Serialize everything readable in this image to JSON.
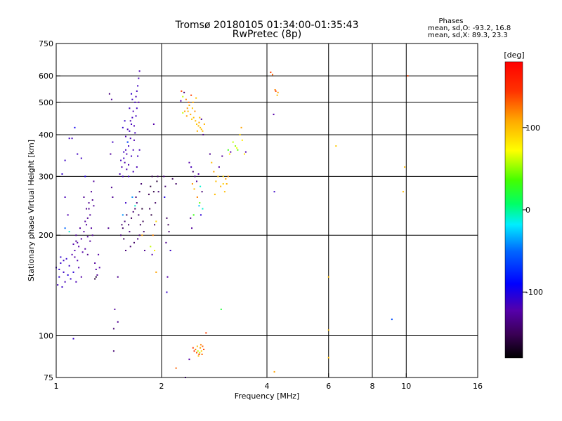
{
  "chart_data": {
    "type": "scatter",
    "title": "Tromsø 20180105 01:34:00-01:35:43",
    "subtitle": "RwPretec (8p)",
    "stats": {
      "heading": "Phases",
      "line1": "mean, sd,O: -93.2, 16.8",
      "line2": "mean, sd,X:  89.3, 23.3"
    },
    "xlabel": "Frequency [MHz]",
    "ylabel": "Stationary phase Virtual Height [km]",
    "x_scale": "log",
    "y_scale": "log",
    "xlim": [
      1,
      16
    ],
    "ylim": [
      75,
      750
    ],
    "x_ticks": [
      1,
      2,
      4,
      6,
      8,
      10,
      16
    ],
    "x_tick_labels": [
      "1",
      "2",
      "4",
      "6",
      "8",
      "10",
      "16"
    ],
    "x_grid": [
      2,
      4,
      6,
      8,
      10
    ],
    "y_ticks": [
      75,
      100,
      200,
      300,
      400,
      500,
      600,
      750
    ],
    "y_tick_labels": [
      "75",
      "100",
      "200",
      "300",
      "400",
      "500",
      "600",
      "750"
    ],
    "y_grid": [
      100,
      200,
      300,
      400,
      500,
      600
    ],
    "grid": true,
    "colorbar": {
      "label": "[deg]",
      "min": -180,
      "max": 180,
      "ticks": [
        100,
        0,
        -100
      ],
      "tick_labels": [
        "100",
        "0",
        "-100"
      ]
    },
    "points": [
      [
        1.0,
        160,
        -110
      ],
      [
        1.02,
        150,
        -105
      ],
      [
        1.03,
        165,
        -108
      ],
      [
        1.05,
        155,
        -112
      ],
      [
        1.06,
        145,
        -115
      ],
      [
        1.04,
        140,
        -110
      ],
      [
        1.07,
        170,
        -108
      ],
      [
        1.08,
        152,
        -103
      ],
      [
        1.02,
        158,
        -106
      ],
      [
        1.09,
        162,
        -110
      ],
      [
        1.1,
        148,
        -109
      ],
      [
        1.05,
        168,
        -111
      ],
      [
        1.01,
        142,
        -113
      ],
      [
        1.12,
        155,
        -104
      ],
      [
        1.03,
        172,
        -107
      ],
      [
        1.11,
        175,
        -120
      ],
      [
        1.13,
        180,
        -118
      ],
      [
        1.15,
        190,
        -122
      ],
      [
        1.14,
        200,
        -125
      ],
      [
        1.16,
        185,
        -120
      ],
      [
        1.18,
        195,
        -123
      ],
      [
        1.17,
        210,
        -125
      ],
      [
        1.19,
        178,
        -121
      ],
      [
        1.12,
        188,
        -119
      ],
      [
        1.2,
        205,
        -124
      ],
      [
        1.15,
        168,
        -117
      ],
      [
        1.13,
        172,
        -120
      ],
      [
        1.16,
        160,
        -118
      ],
      [
        1.18,
        150,
        -121
      ],
      [
        1.14,
        145,
        -116
      ],
      [
        1.21,
        220,
        -125
      ],
      [
        1.22,
        240,
        -130
      ],
      [
        1.2,
        260,
        -128
      ],
      [
        1.23,
        225,
        -127
      ],
      [
        1.24,
        250,
        -129
      ],
      [
        1.25,
        230,
        -126
      ],
      [
        1.26,
        270,
        -128
      ],
      [
        1.27,
        255,
        -130
      ],
      [
        1.22,
        215,
        -124
      ],
      [
        1.28,
        245,
        -127
      ],
      [
        1.23,
        198,
        -123
      ],
      [
        1.25,
        192,
        -125
      ],
      [
        1.21,
        182,
        -121
      ],
      [
        1.26,
        210,
        -124
      ],
      [
        1.27,
        200,
        -126
      ],
      [
        1.29,
        165,
        -125
      ],
      [
        1.3,
        158,
        -122
      ],
      [
        1.31,
        152,
        -128
      ],
      [
        1.29,
        148,
        -160
      ],
      [
        1.3,
        150,
        -165
      ],
      [
        1.33,
        160,
        -120
      ],
      [
        1.32,
        175,
        -122
      ],
      [
        1.12,
        98,
        -110
      ],
      [
        1.06,
        260,
        -115
      ],
      [
        1.08,
        230,
        -118
      ],
      [
        1.04,
        305,
        -108
      ],
      [
        1.06,
        335,
        -110
      ],
      [
        1.09,
        390,
        -112
      ],
      [
        1.13,
        420,
        -95
      ],
      [
        1.15,
        350,
        -112
      ],
      [
        1.11,
        390,
        -114
      ],
      [
        1.18,
        340,
        -112
      ],
      [
        1.21,
        300,
        -100
      ],
      [
        1.24,
        240,
        -130
      ],
      [
        1.28,
        290,
        -125
      ],
      [
        1.06,
        210,
        -50
      ],
      [
        1.09,
        205,
        -10
      ],
      [
        1.23,
        175,
        -130
      ],
      [
        1.14,
        192,
        -128
      ],
      [
        1.42,
        530,
        -135
      ],
      [
        1.44,
        510,
        -125
      ],
      [
        1.47,
        120,
        -125
      ],
      [
        1.46,
        105,
        -140
      ],
      [
        1.5,
        110,
        -128
      ],
      [
        1.46,
        90,
        -140
      ],
      [
        1.41,
        210,
        -130
      ],
      [
        1.5,
        150,
        -130
      ],
      [
        1.45,
        260,
        -128
      ],
      [
        1.44,
        278,
        -130
      ],
      [
        1.43,
        350,
        -125
      ],
      [
        1.45,
        380,
        -112
      ],
      [
        1.52,
        305,
        -115
      ],
      [
        1.54,
        320,
        -118
      ],
      [
        1.56,
        340,
        -112
      ],
      [
        1.58,
        360,
        -116
      ],
      [
        1.6,
        380,
        -114
      ],
      [
        1.55,
        300,
        -113
      ],
      [
        1.57,
        330,
        -119
      ],
      [
        1.59,
        350,
        -117
      ],
      [
        1.61,
        370,
        -112
      ],
      [
        1.63,
        390,
        -115
      ],
      [
        1.62,
        410,
        -114
      ],
      [
        1.64,
        430,
        -113
      ],
      [
        1.65,
        450,
        -112
      ],
      [
        1.66,
        470,
        -116
      ],
      [
        1.63,
        440,
        -118
      ],
      [
        1.6,
        415,
        -115
      ],
      [
        1.58,
        395,
        -116
      ],
      [
        1.53,
        335,
        -114
      ],
      [
        1.56,
        355,
        -112
      ],
      [
        1.59,
        315,
        -118
      ],
      [
        1.61,
        325,
        -117
      ],
      [
        1.64,
        345,
        -113
      ],
      [
        1.66,
        360,
        -115
      ],
      [
        1.67,
        385,
        -118
      ],
      [
        1.68,
        405,
        -114
      ],
      [
        1.67,
        425,
        -116
      ],
      [
        1.69,
        455,
        -113
      ],
      [
        1.7,
        480,
        -112
      ],
      [
        1.68,
        500,
        -114
      ],
      [
        1.69,
        520,
        -116
      ],
      [
        1.7,
        540,
        -113
      ],
      [
        1.71,
        560,
        -112
      ],
      [
        1.72,
        590,
        -115
      ],
      [
        1.73,
        620,
        -117
      ],
      [
        1.72,
        500,
        -120
      ],
      [
        1.65,
        510,
        -110
      ],
      [
        1.64,
        530,
        -108
      ],
      [
        1.62,
        480,
        -112
      ],
      [
        1.57,
        440,
        -108
      ],
      [
        1.55,
        420,
        -108
      ],
      [
        1.61,
        300,
        -112
      ],
      [
        1.66,
        310,
        -114
      ],
      [
        1.7,
        320,
        -116
      ],
      [
        1.71,
        345,
        -113
      ],
      [
        1.73,
        360,
        -115
      ],
      [
        1.58,
        250,
        -110
      ],
      [
        1.55,
        230,
        -40
      ],
      [
        1.6,
        380,
        -60
      ],
      [
        1.53,
        200,
        -140
      ],
      [
        1.55,
        210,
        -145
      ],
      [
        1.57,
        220,
        -138
      ],
      [
        1.59,
        230,
        -150
      ],
      [
        1.61,
        215,
        -142
      ],
      [
        1.62,
        205,
        -135
      ],
      [
        1.64,
        225,
        -148
      ],
      [
        1.66,
        235,
        -140
      ],
      [
        1.68,
        240,
        -145
      ],
      [
        1.7,
        250,
        -138
      ],
      [
        1.72,
        230,
        -142
      ],
      [
        1.74,
        215,
        -150
      ],
      [
        1.73,
        200,
        -140
      ],
      [
        1.71,
        195,
        -135
      ],
      [
        1.67,
        190,
        -145
      ],
      [
        1.63,
        185,
        -140
      ],
      [
        1.58,
        180,
        -138
      ],
      [
        1.56,
        195,
        -148
      ],
      [
        1.54,
        215,
        -142
      ],
      [
        1.69,
        260,
        -140
      ],
      [
        1.73,
        270,
        -145
      ],
      [
        1.75,
        285,
        -142
      ],
      [
        1.76,
        240,
        -160
      ],
      [
        1.77,
        220,
        -150
      ],
      [
        1.78,
        205,
        -143
      ],
      [
        1.65,
        260,
        -40
      ],
      [
        1.68,
        245,
        -10
      ],
      [
        1.76,
        200,
        110
      ],
      [
        1.79,
        180,
        -130
      ],
      [
        1.84,
        265,
        -150
      ],
      [
        1.86,
        280,
        -160
      ],
      [
        1.88,
        300,
        -150
      ],
      [
        1.9,
        270,
        -155
      ],
      [
        1.92,
        250,
        -145
      ],
      [
        1.94,
        290,
        -160
      ],
      [
        1.85,
        240,
        -150
      ],
      [
        1.87,
        230,
        -155
      ],
      [
        1.91,
        215,
        -145
      ],
      [
        1.89,
        200,
        120
      ],
      [
        1.86,
        185,
        60
      ],
      [
        1.95,
        300,
        -145
      ],
      [
        1.91,
        180,
        80
      ],
      [
        1.93,
        220,
        90
      ],
      [
        1.88,
        175,
        -120
      ],
      [
        1.93,
        155,
        110
      ],
      [
        1.9,
        430,
        -120
      ],
      [
        1.96,
        270,
        -140
      ],
      [
        2.03,
        300,
        -135
      ],
      [
        2.05,
        280,
        -140
      ],
      [
        2.07,
        225,
        -145
      ],
      [
        2.09,
        215,
        -150
      ],
      [
        2.1,
        205,
        -140
      ],
      [
        2.06,
        190,
        -130
      ],
      [
        2.12,
        180,
        -110
      ],
      [
        2.04,
        260,
        -100
      ],
      [
        2.07,
        135,
        -108
      ],
      [
        2.08,
        150,
        -120
      ],
      [
        2.15,
        295,
        -148
      ],
      [
        2.2,
        285,
        -145
      ],
      [
        2.3,
        520,
        60
      ],
      [
        2.35,
        510,
        120
      ],
      [
        2.4,
        490,
        105
      ],
      [
        2.45,
        480,
        98
      ],
      [
        2.38,
        470,
        102
      ],
      [
        2.42,
        460,
        108
      ],
      [
        2.47,
        450,
        100
      ],
      [
        2.44,
        445,
        95
      ],
      [
        2.36,
        455,
        110
      ],
      [
        2.33,
        470,
        112
      ],
      [
        2.5,
        440,
        100
      ],
      [
        2.52,
        430,
        95
      ],
      [
        2.55,
        425,
        102
      ],
      [
        2.58,
        420,
        98
      ],
      [
        2.6,
        415,
        100
      ],
      [
        2.53,
        410,
        105
      ],
      [
        2.49,
        470,
        115
      ],
      [
        2.46,
        500,
        108
      ],
      [
        2.51,
        515,
        96
      ],
      [
        2.56,
        435,
        110
      ],
      [
        2.43,
        525,
        140
      ],
      [
        2.39,
        500,
        130
      ],
      [
        2.62,
        410,
        100
      ],
      [
        2.65,
        430,
        104
      ],
      [
        2.57,
        450,
        101
      ],
      [
        2.32,
        535,
        -140
      ],
      [
        2.28,
        540,
        140
      ],
      [
        2.27,
        505,
        -120
      ],
      [
        2.37,
        480,
        115
      ],
      [
        2.3,
        465,
        60
      ],
      [
        2.6,
        445,
        -130
      ],
      [
        2.63,
        400,
        -130
      ],
      [
        2.4,
        330,
        -120
      ],
      [
        2.43,
        320,
        -115
      ],
      [
        2.46,
        310,
        -140
      ],
      [
        2.49,
        300,
        -130
      ],
      [
        2.52,
        290,
        -125
      ],
      [
        2.55,
        305,
        -120
      ],
      [
        2.58,
        280,
        -10
      ],
      [
        2.61,
        270,
        -140
      ],
      [
        2.45,
        285,
        115
      ],
      [
        2.48,
        275,
        100
      ],
      [
        2.53,
        260,
        120
      ],
      [
        2.57,
        250,
        40
      ],
      [
        2.62,
        240,
        -10
      ],
      [
        2.47,
        230,
        30
      ],
      [
        2.42,
        225,
        -130
      ],
      [
        2.44,
        210,
        -125
      ],
      [
        2.56,
        245,
        -30
      ],
      [
        2.59,
        230,
        -105
      ],
      [
        2.46,
        92,
        140
      ],
      [
        2.48,
        90,
        150
      ],
      [
        2.5,
        91,
        120
      ],
      [
        2.52,
        89,
        130
      ],
      [
        2.54,
        90,
        60
      ],
      [
        2.56,
        88,
        145
      ],
      [
        2.58,
        92,
        110
      ],
      [
        2.6,
        90,
        95
      ],
      [
        2.62,
        93,
        130
      ],
      [
        2.64,
        91,
        140
      ],
      [
        2.55,
        87,
        100
      ],
      [
        2.57,
        89,
        60
      ],
      [
        2.59,
        94,
        120
      ],
      [
        2.61,
        88,
        130
      ],
      [
        2.53,
        93,
        100
      ],
      [
        2.4,
        85,
        -120
      ],
      [
        2.34,
        75,
        -120
      ],
      [
        2.68,
        102,
        140
      ],
      [
        2.2,
        80,
        130
      ],
      [
        2.75,
        350,
        -130
      ],
      [
        2.78,
        330,
        100
      ],
      [
        2.82,
        310,
        110
      ],
      [
        2.86,
        290,
        100
      ],
      [
        2.9,
        300,
        100
      ],
      [
        2.95,
        280,
        105
      ],
      [
        3.0,
        300,
        90
      ],
      [
        3.03,
        270,
        100
      ],
      [
        3.07,
        285,
        105
      ],
      [
        2.92,
        320,
        -120
      ],
      [
        2.98,
        345,
        -125
      ],
      [
        3.1,
        360,
        30
      ],
      [
        3.13,
        350,
        80
      ],
      [
        3.15,
        355,
        -120
      ],
      [
        3.2,
        380,
        60
      ],
      [
        3.25,
        370,
        50
      ],
      [
        3.3,
        360,
        40
      ],
      [
        3.35,
        400,
        90
      ],
      [
        3.38,
        420,
        110
      ],
      [
        3.4,
        385,
        80
      ],
      [
        3.28,
        365,
        70
      ],
      [
        3.05,
        295,
        110
      ],
      [
        3.1,
        300,
        115
      ],
      [
        3.0,
        285,
        90
      ],
      [
        2.84,
        265,
        100
      ],
      [
        3.45,
        350,
        85
      ],
      [
        3.48,
        355,
        -120
      ],
      [
        2.96,
        120,
        20
      ],
      [
        4.1,
        615,
        140
      ],
      [
        4.15,
        605,
        130
      ],
      [
        4.18,
        460,
        -120
      ],
      [
        4.2,
        270,
        -110
      ],
      [
        4.22,
        545,
        120
      ],
      [
        4.24,
        540,
        140
      ],
      [
        4.28,
        525,
        100
      ],
      [
        4.3,
        535,
        110
      ],
      [
        4.2,
        78,
        110
      ],
      [
        6.0,
        150,
        100
      ],
      [
        6.0,
        104,
        100
      ],
      [
        6.0,
        86,
        100
      ],
      [
        6.3,
        370,
        95
      ],
      [
        9.1,
        112,
        -60
      ],
      [
        9.8,
        270,
        100
      ],
      [
        9.9,
        320,
        100
      ],
      [
        10.1,
        600,
        140
      ]
    ]
  }
}
